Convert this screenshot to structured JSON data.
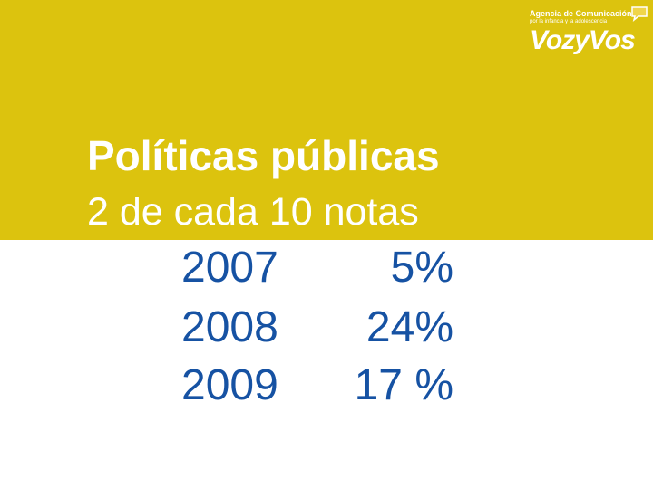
{
  "header": {
    "logo_line1": "Agencia de Comunicación",
    "logo_line2": "por la infancia y la adolescencia",
    "logo_word": "VozyVos"
  },
  "title": "Políticas públicas",
  "subtitle": "2 de cada 10 notas",
  "rows": [
    {
      "year": "2007",
      "percent": "5%"
    },
    {
      "year": "2008",
      "percent": "24%"
    },
    {
      "year": "2009",
      "percent": "17 %"
    }
  ],
  "colors": {
    "band": "#dcc30e",
    "text_on_band": "#ffffff",
    "data_text": "#1652a3"
  }
}
